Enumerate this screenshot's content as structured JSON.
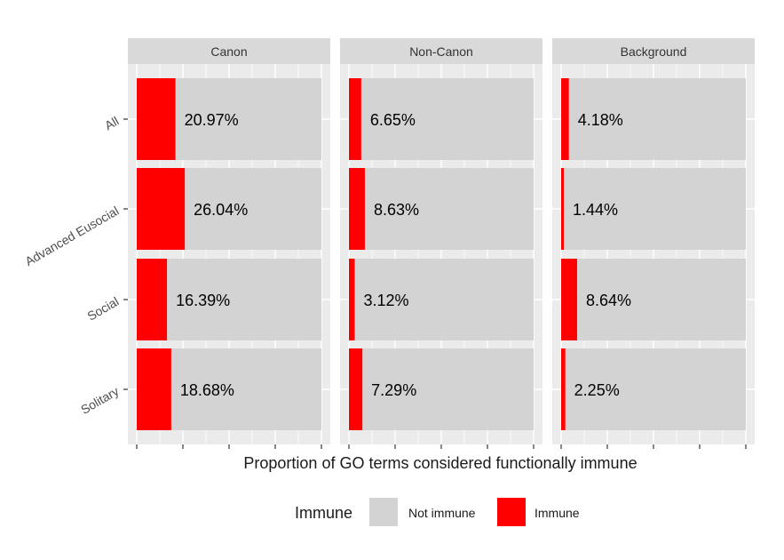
{
  "chart_data": {
    "type": "bar",
    "orientation": "horizontal",
    "stacked": "fill",
    "title": "",
    "xlabel": "Proportion of GO terms considered functionally immune",
    "ylabel": "",
    "xlim": [
      0,
      1
    ],
    "grid": true,
    "facets": [
      "Canon",
      "Non-Canon",
      "Background"
    ],
    "categories": [
      "All",
      "Advanced Eusocial",
      "Social",
      "Solitary"
    ],
    "series": [
      {
        "name": "Immune",
        "color": "#ff0000",
        "values": {
          "Canon": [
            0.2097,
            0.2604,
            0.1639,
            0.1868
          ],
          "Non-Canon": [
            0.0665,
            0.0863,
            0.0312,
            0.0729
          ],
          "Background": [
            0.0418,
            0.0144,
            0.0864,
            0.0225
          ]
        }
      },
      {
        "name": "Not immune",
        "color": "#d3d3d3",
        "values": {
          "Canon": [
            0.7903,
            0.7396,
            0.8361,
            0.8132
          ],
          "Non-Canon": [
            0.9335,
            0.9137,
            0.9688,
            0.9271
          ],
          "Background": [
            0.9582,
            0.9856,
            0.9136,
            0.9775
          ]
        }
      }
    ],
    "data_labels": {
      "Canon": [
        "20.97%",
        "26.04%",
        "16.39%",
        "18.68%"
      ],
      "Non-Canon": [
        "6.65%",
        "8.63%",
        "3.12%",
        "7.29%"
      ],
      "Background": [
        "4.18%",
        "1.44%",
        "8.64%",
        "2.25%"
      ]
    },
    "legend": {
      "title": "Immune",
      "position": "bottom",
      "entries": [
        {
          "label": "Not immune",
          "color": "#d3d3d3"
        },
        {
          "label": "Immune",
          "color": "#ff0000"
        }
      ]
    },
    "colors": {
      "panel_background": "#ebebeb",
      "strip_background": "#d9d9d9",
      "grid": "#ffffff"
    }
  }
}
